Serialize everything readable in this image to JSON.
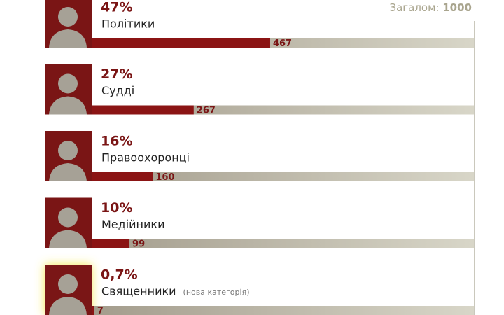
{
  "chart_data": {
    "type": "bar",
    "orientation": "horizontal",
    "total_label": "Загалом:",
    "total": 1000,
    "categories": [
      "Політики",
      "Судді",
      "Правоохоронці",
      "Медійники",
      "Священники"
    ],
    "values": [
      467,
      267,
      160,
      99,
      7
    ],
    "shares": [
      47,
      27,
      16,
      10,
      0.7
    ],
    "share_labels": [
      "47%",
      "27%",
      "16%",
      "10%",
      "0,7%"
    ],
    "annotation": {
      "text": "(нова категорія)",
      "category": "Священники"
    },
    "color": "#8b1414",
    "track_color": "#c9c6b6"
  }
}
